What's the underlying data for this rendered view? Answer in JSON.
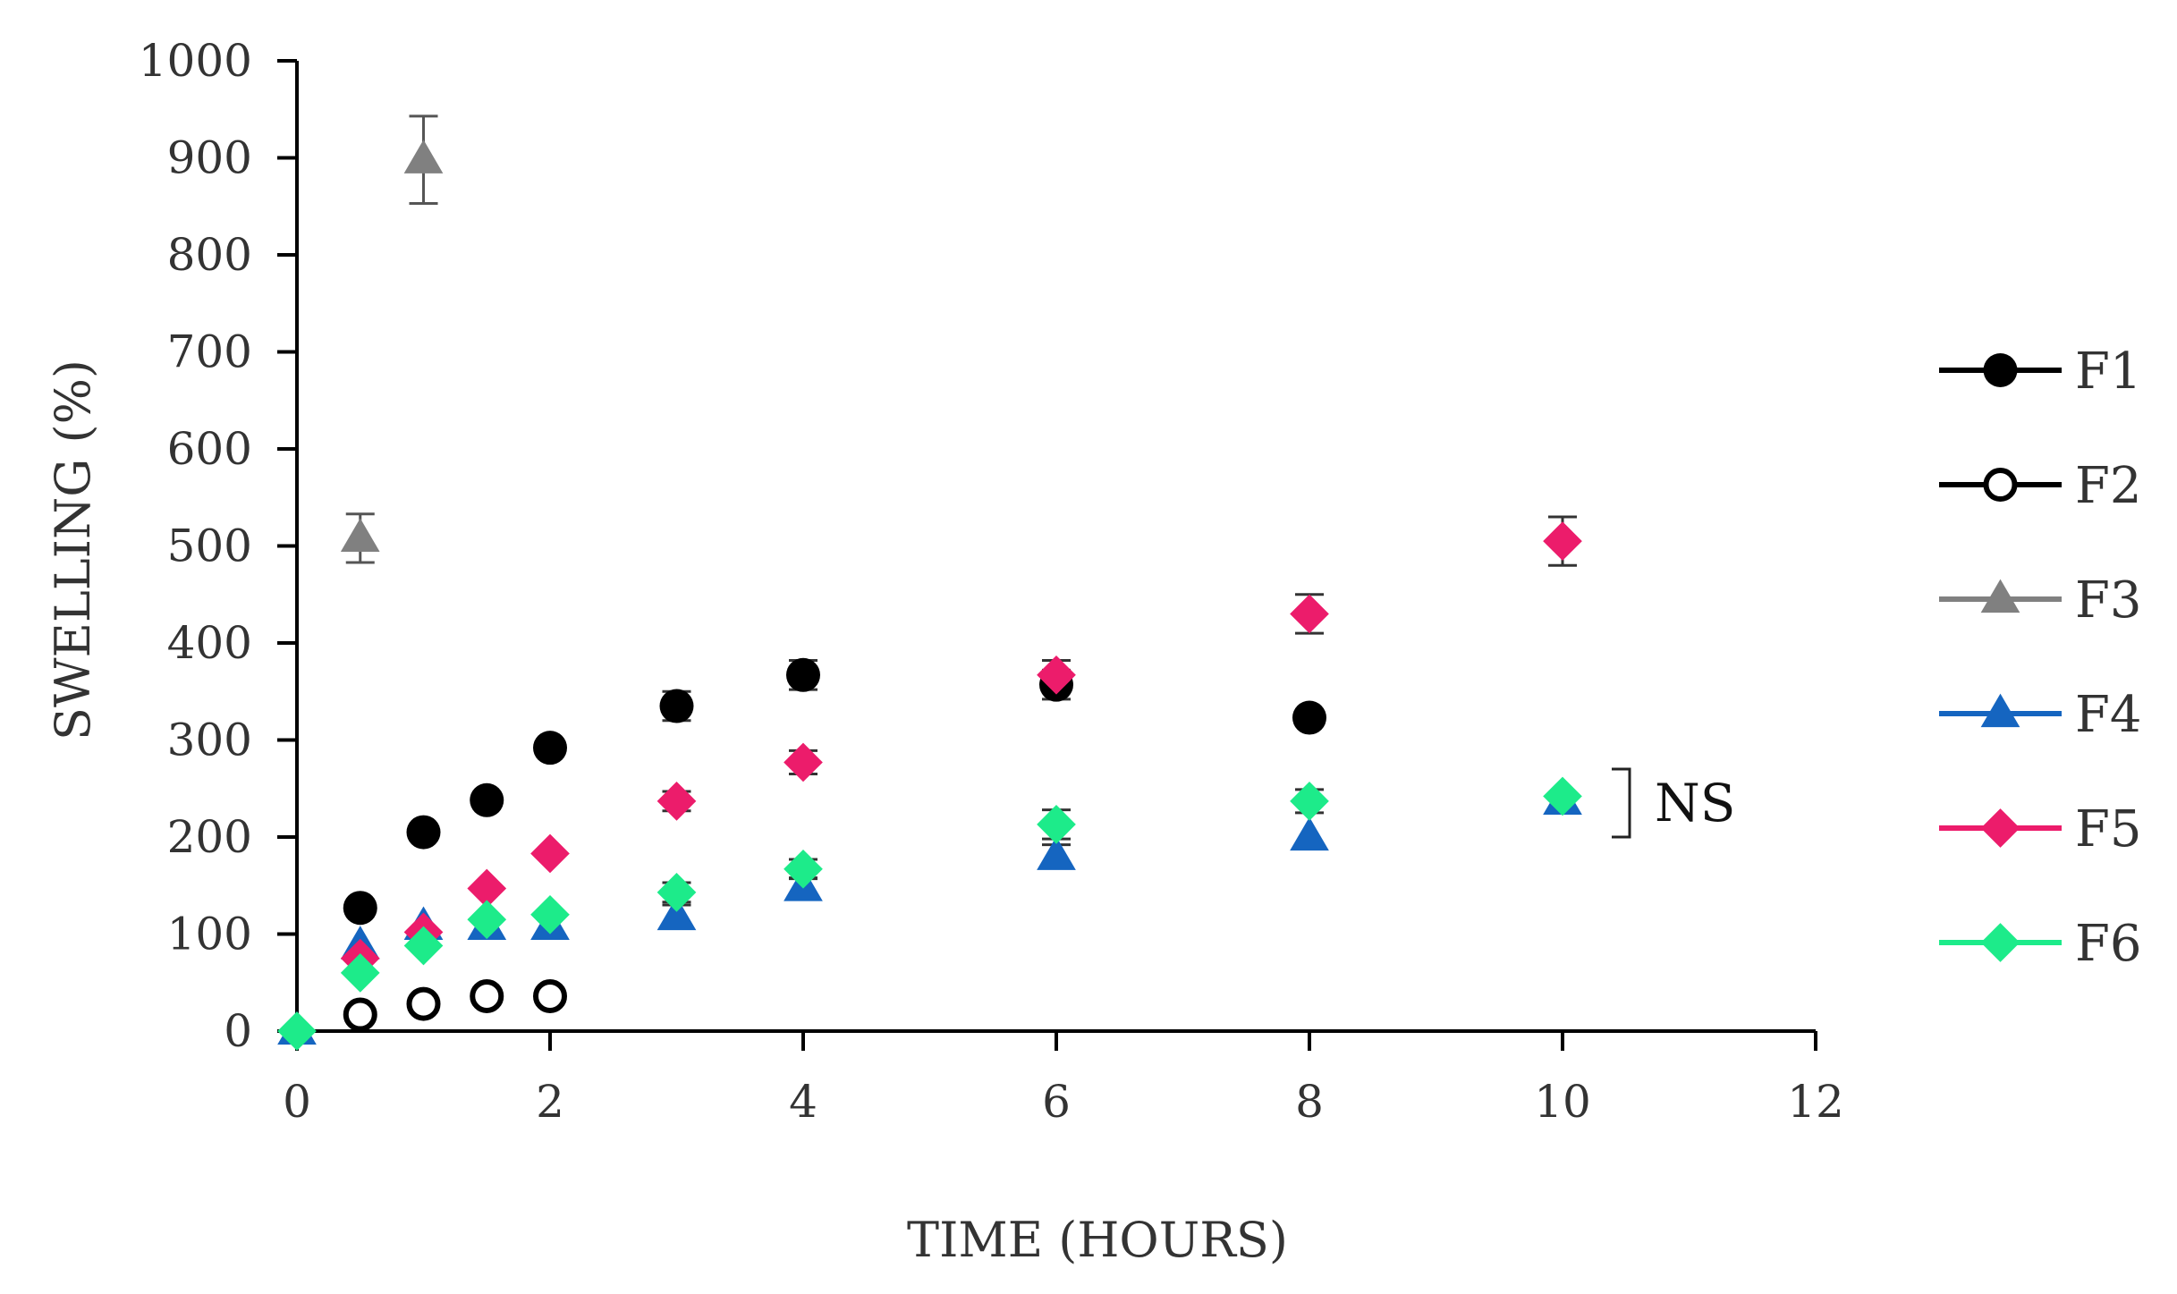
{
  "chart_data": {
    "type": "scatter",
    "title": "",
    "xlabel": "TIME (HOURS)",
    "ylabel": "SWELLING  (%)",
    "xlim": [
      0,
      12
    ],
    "ylim": [
      0,
      1000
    ],
    "xticks": [
      0,
      2,
      4,
      6,
      8,
      10,
      12
    ],
    "yticks": [
      0,
      100,
      200,
      300,
      400,
      500,
      600,
      700,
      800,
      900,
      1000
    ],
    "xtick_labels": [
      "0",
      "2",
      "4",
      "6",
      "8",
      "10",
      "12"
    ],
    "ytick_labels": [
      "0",
      "100",
      "200",
      "300",
      "400",
      "500",
      "600",
      "700",
      "800",
      "900",
      "1000"
    ],
    "grid": false,
    "legend_position": "right",
    "series": [
      {
        "name": "F1",
        "marker": "circle-filled",
        "color": "#000000",
        "x": [
          0.5,
          1,
          1.5,
          2,
          3,
          4,
          6,
          8
        ],
        "y": [
          127,
          205,
          238,
          292,
          335,
          367,
          357,
          323
        ],
        "err": [
          0,
          0,
          0,
          0,
          15,
          15,
          15,
          0
        ]
      },
      {
        "name": "F2",
        "marker": "circle-open",
        "color": "#000000",
        "x": [
          0.5,
          1,
          1.5,
          2
        ],
        "y": [
          17,
          28,
          36,
          36
        ],
        "err": [
          0,
          0,
          0,
          0
        ]
      },
      {
        "name": "F3",
        "marker": "triangle",
        "color": "#808080",
        "x": [
          0.5,
          1
        ],
        "y": [
          508,
          898
        ],
        "err": [
          25,
          45
        ]
      },
      {
        "name": "F4",
        "marker": "triangle",
        "color": "#1565C0",
        "x": [
          0,
          0.5,
          1,
          1.5,
          2,
          3,
          4,
          6,
          8,
          10
        ],
        "y": [
          0,
          88,
          108,
          108,
          108,
          118,
          148,
          180,
          200,
          237
        ],
        "err": [
          0,
          0,
          0,
          0,
          0,
          12,
          10,
          12,
          0,
          0
        ]
      },
      {
        "name": "F5",
        "marker": "diamond",
        "color": "#EC1C6B",
        "x": [
          0.5,
          1,
          1.5,
          2,
          3,
          4,
          6,
          8,
          10
        ],
        "y": [
          75,
          102,
          147,
          183,
          237,
          277,
          367,
          430,
          505
        ],
        "err": [
          0,
          0,
          0,
          0,
          10,
          12,
          15,
          20,
          25
        ]
      },
      {
        "name": "F6",
        "marker": "diamond",
        "color": "#1DEB8A",
        "x": [
          0,
          0.5,
          1,
          1.5,
          2,
          3,
          4,
          6,
          8,
          10
        ],
        "y": [
          0,
          60,
          88,
          115,
          120,
          143,
          167,
          213,
          237,
          242
        ],
        "err": [
          0,
          0,
          0,
          0,
          0,
          10,
          10,
          15,
          12,
          0
        ]
      }
    ],
    "annotations": [
      {
        "text": "NS",
        "x": 10,
        "y_range": [
          200,
          270
        ]
      }
    ]
  }
}
